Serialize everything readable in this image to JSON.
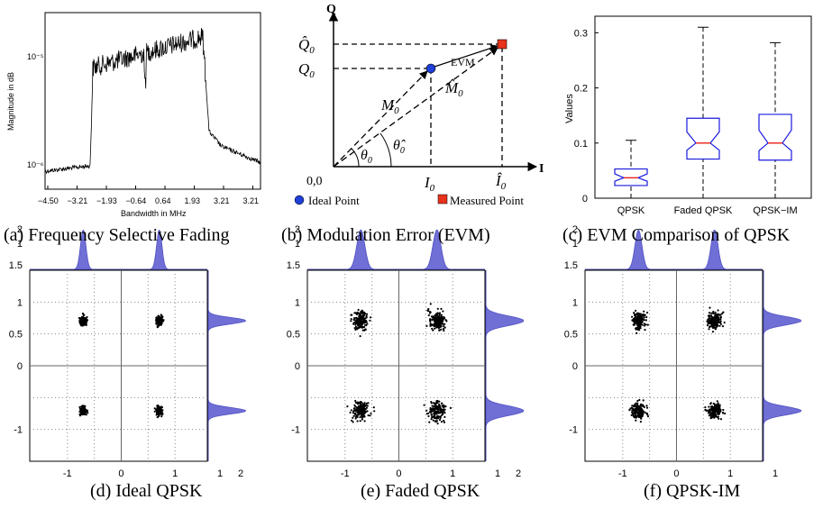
{
  "captions": {
    "a": "(a) Frequency Selective Fading",
    "b": "(b) Modulation Error (EVM)",
    "c": "(c) EVM Comparison of QPSK",
    "d": "(d) Ideal QPSK",
    "e": "(e) Faded QPSK",
    "f": "(f) QPSK-IM"
  },
  "fading": {
    "xlabel": "Bandwidth in MHz",
    "ylabel": "Magnitude in dB",
    "xticks": [
      "−4.50",
      "−3.21",
      "−1.93",
      "−0.64",
      "0.64",
      "1.93",
      "3.21",
      "3.21"
    ],
    "yticks": [
      "10⁻⁵",
      "10⁻⁶"
    ]
  },
  "evm": {
    "q_axis": "Q",
    "i_axis": "I",
    "origin": "0,0",
    "Q0": "Q",
    "Q0sub": "0",
    "Q0hat": "Q̂",
    "Q0hatsub": "0",
    "I0": "I",
    "I0sub": "0",
    "I0hat": "Î",
    "I0hatsub": "0",
    "M0": "M",
    "M0sub": "0",
    "M0hat": "M̂",
    "M0hatsub": "0",
    "theta0": "θ",
    "theta0sub": "0",
    "theta0hat": "θ̂",
    "theta0hatsub": "0",
    "evm_label": "EVM",
    "legend_ideal": "Ideal Point",
    "legend_measured": "Measured Point",
    "colors": {
      "ideal": "#1f3fd6",
      "measured": "#e8321c"
    }
  },
  "chart_data": [
    {
      "type": "box",
      "title": "",
      "xlabel": "",
      "ylabel": "Values",
      "ylim": [
        0,
        0.33
      ],
      "yticks": [
        "0",
        "0.1",
        "0.2",
        "0.3"
      ],
      "categories": [
        "QPSK",
        "Faded QPSK",
        "QPSK−IM"
      ],
      "boxes": [
        {
          "min": 0.0,
          "q1": 0.023,
          "median": 0.037,
          "q3": 0.053,
          "max": 0.105
        },
        {
          "min": 0.0,
          "q1": 0.071,
          "median": 0.1,
          "q3": 0.145,
          "max": 0.31
        },
        {
          "min": 0.0,
          "q1": 0.069,
          "median": 0.1,
          "q3": 0.152,
          "max": 0.282
        }
      ],
      "colors": {
        "box": "#1a1adf",
        "median": "#e8231c"
      }
    },
    {
      "type": "scatter",
      "name": "ideal",
      "xticks": [
        "-1",
        "0",
        "1"
      ],
      "yticks": [
        "1",
        "0.5",
        "0",
        "-1"
      ],
      "top_ticks": [
        "2",
        "1",
        "1.5"
      ],
      "right_ticks": [
        "1",
        "2"
      ],
      "centers": [
        [
          -0.707,
          0.707
        ],
        [
          0.707,
          0.707
        ],
        [
          -0.707,
          -0.707
        ],
        [
          0.707,
          -0.707
        ]
      ],
      "noise_std": 0.03
    },
    {
      "type": "scatter",
      "name": "faded",
      "xticks": [
        "-1",
        "0",
        "1"
      ],
      "yticks": [
        "1",
        "0.5",
        "0",
        "-1"
      ],
      "top_ticks": [
        "2",
        "1",
        "1.5"
      ],
      "right_ticks": [
        "1",
        "2"
      ],
      "centers": [
        [
          -0.707,
          0.707
        ],
        [
          0.707,
          0.707
        ],
        [
          -0.707,
          -0.707
        ],
        [
          0.707,
          -0.707
        ]
      ],
      "noise_std": 0.075
    },
    {
      "type": "scatter",
      "name": "qpsk-im",
      "xticks": [
        "-1",
        "0",
        "1"
      ],
      "yticks": [
        "1",
        "0.5",
        "0",
        "-1"
      ],
      "top_ticks": [
        "2",
        "1",
        "1.5"
      ],
      "right_ticks": [
        "1"
      ],
      "centers": [
        [
          -0.707,
          0.707
        ],
        [
          0.707,
          0.707
        ],
        [
          -0.707,
          -0.707
        ],
        [
          0.707,
          -0.707
        ]
      ],
      "noise_std": 0.065
    }
  ],
  "dist_color": "#6f6fd6"
}
